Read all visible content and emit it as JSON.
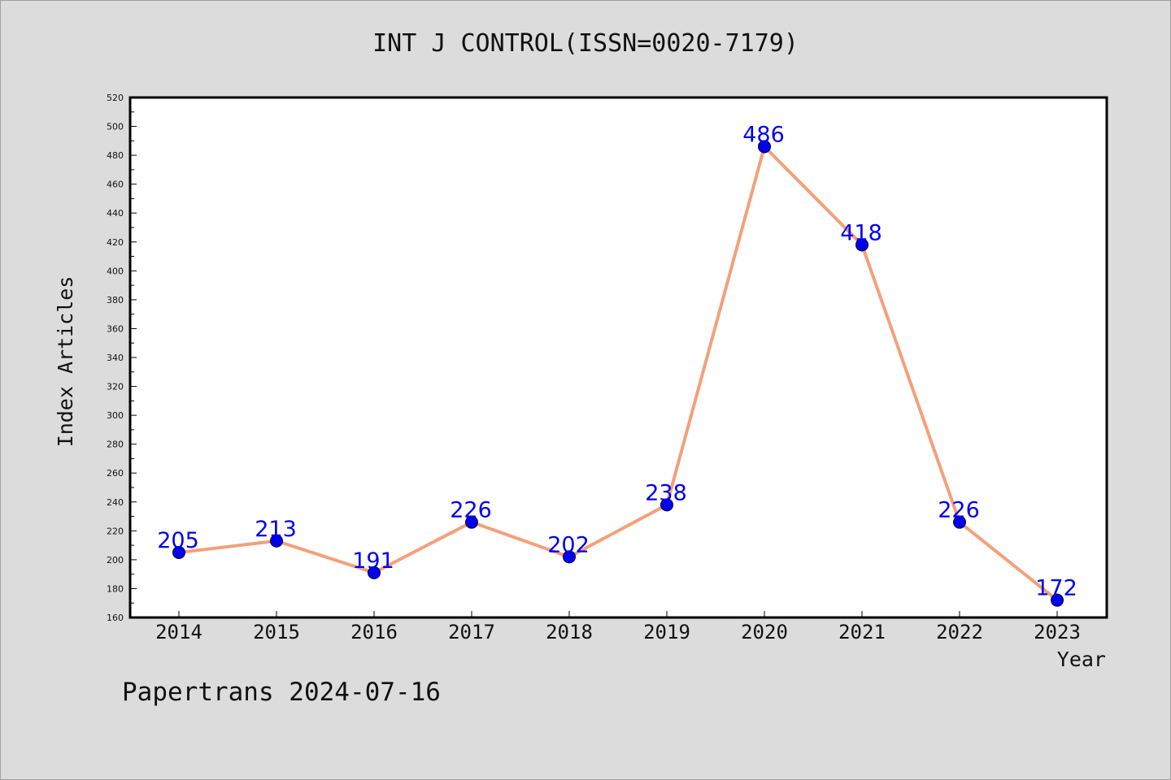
{
  "chart_data": {
    "type": "line",
    "title": "INT J CONTROL(ISSN=0020-7179)",
    "xlabel": "Year",
    "ylabel": "Index Articles",
    "categories": [
      "2014",
      "2015",
      "2016",
      "2017",
      "2018",
      "2019",
      "2020",
      "2021",
      "2022",
      "2023"
    ],
    "values": [
      205,
      213,
      191,
      226,
      202,
      238,
      486,
      418,
      226,
      172
    ],
    "ylim": [
      160,
      520
    ],
    "ytick_step": 20,
    "grid": false,
    "legend": "none",
    "line_color": "#f4a07a",
    "marker_color": "#0000ee",
    "label_color": "#0000ee"
  },
  "footer": "Papertrans 2024-07-16"
}
